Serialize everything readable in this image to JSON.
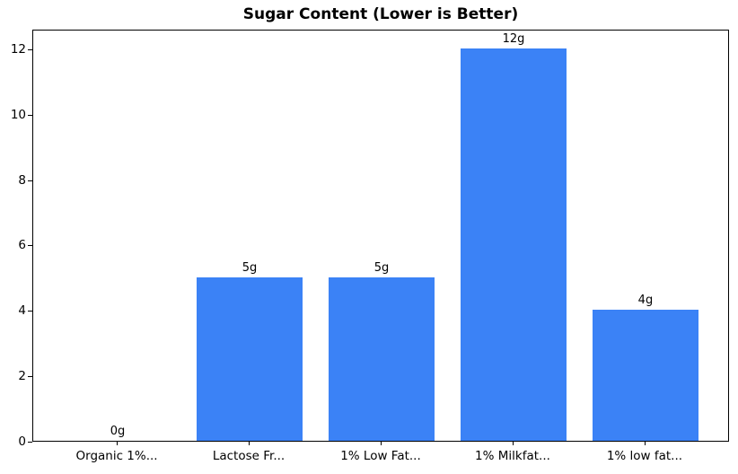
{
  "chart_data": {
    "type": "bar",
    "title": "Sugar Content (Lower is Better)",
    "categories": [
      "Organic 1%...",
      "Lactose Fr...",
      "1% Low Fat...",
      "1% Milkfat...",
      "1% low fat..."
    ],
    "values": [
      0,
      5,
      5,
      12,
      4
    ],
    "bar_labels": [
      "0g",
      "5g",
      "5g",
      "12g",
      "4g"
    ],
    "xlabel": "",
    "ylabel": "",
    "ylim": [
      0,
      12.6
    ],
    "yticks": [
      0,
      2,
      4,
      6,
      8,
      10,
      12
    ],
    "grid": false,
    "legend_position": "none",
    "bar_color": "#3b82f6",
    "axis_color": "#000000",
    "background_color": "#ffffff"
  }
}
